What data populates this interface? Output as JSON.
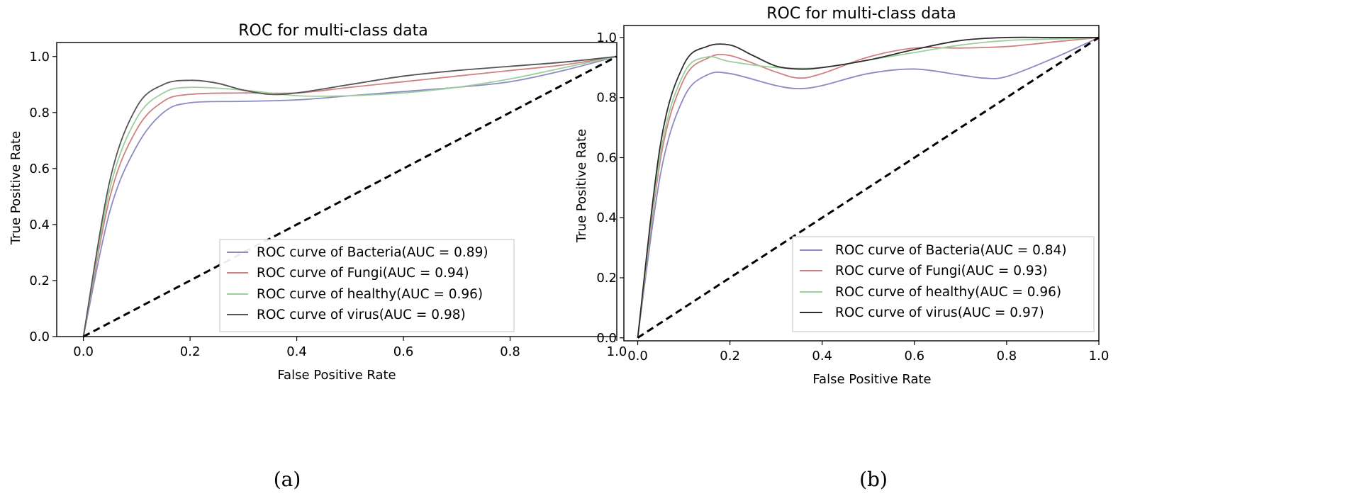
{
  "chart_data": [
    {
      "type": "line",
      "panel_label": "(a)",
      "title": "ROC for multi-class data",
      "xlabel": "False Positive Rate",
      "ylabel": "True Positive Rate",
      "xlim": [
        -0.05,
        1.0
      ],
      "ylim": [
        0.0,
        1.05
      ],
      "xticks": [
        "0.0",
        "0.2",
        "0.4",
        "0.6",
        "0.8",
        "1.0"
      ],
      "yticks": [
        "0.0",
        "0.2",
        "0.4",
        "0.6",
        "0.8",
        "1.0"
      ],
      "legend_position": "lower-right",
      "baseline": {
        "style": "dashed",
        "color": "#000000",
        "x": [
          0,
          1
        ],
        "y": [
          0,
          1
        ]
      },
      "series": [
        {
          "name": "ROC curve of Bacteria(AUC = 0.89)",
          "color": "#8b8bc4",
          "x": [
            0,
            0.05,
            0.1,
            0.15,
            0.2,
            0.3,
            0.4,
            0.5,
            0.6,
            0.7,
            0.8,
            0.9,
            1.0
          ],
          "y": [
            0,
            0.45,
            0.68,
            0.8,
            0.835,
            0.84,
            0.845,
            0.86,
            0.875,
            0.89,
            0.91,
            0.95,
            1.0
          ]
        },
        {
          "name": "ROC curve of Fungi(AUC = 0.94)",
          "color": "#d08080",
          "x": [
            0,
            0.05,
            0.1,
            0.15,
            0.2,
            0.3,
            0.4,
            0.5,
            0.6,
            0.7,
            0.8,
            0.9,
            1.0
          ],
          "y": [
            0,
            0.5,
            0.74,
            0.84,
            0.865,
            0.87,
            0.87,
            0.89,
            0.91,
            0.93,
            0.95,
            0.97,
            1.0
          ]
        },
        {
          "name": "ROC curve of healthy(AUC = 0.96)",
          "color": "#9ccf9c",
          "x": [
            0,
            0.05,
            0.1,
            0.15,
            0.2,
            0.3,
            0.4,
            0.5,
            0.6,
            0.7,
            0.8,
            0.9,
            1.0
          ],
          "y": [
            0,
            0.53,
            0.78,
            0.87,
            0.89,
            0.88,
            0.86,
            0.86,
            0.87,
            0.89,
            0.92,
            0.96,
            1.0
          ]
        },
        {
          "name": "ROC curve of virus(AUC = 0.98)",
          "color": "#555555",
          "x": [
            0,
            0.05,
            0.1,
            0.15,
            0.2,
            0.25,
            0.3,
            0.35,
            0.4,
            0.5,
            0.6,
            0.7,
            0.8,
            0.9,
            1.0
          ],
          "y": [
            0,
            0.56,
            0.82,
            0.9,
            0.915,
            0.905,
            0.88,
            0.865,
            0.87,
            0.9,
            0.93,
            0.95,
            0.965,
            0.98,
            1.0
          ]
        }
      ]
    },
    {
      "type": "line",
      "panel_label": "(b)",
      "title": "ROC for multi-class data",
      "xlabel": "False Positive Rate",
      "ylabel": "True Positive Rate",
      "xlim": [
        -0.03,
        1.0
      ],
      "ylim": [
        -0.01,
        1.04
      ],
      "xticks": [
        "0.0",
        "0.2",
        "0.4",
        "0.6",
        "0.8",
        "1.0"
      ],
      "yticks": [
        "0.0",
        "0.2",
        "0.4",
        "0.6",
        "0.8",
        "1.0"
      ],
      "legend_position": "lower-right",
      "baseline": {
        "style": "dashed",
        "color": "#000000",
        "x": [
          0,
          1
        ],
        "y": [
          0,
          1
        ]
      },
      "series": [
        {
          "name": "ROC curve of Bacteria(AUC = 0.84)",
          "color": "#8b8bc4",
          "x": [
            0,
            0.05,
            0.1,
            0.15,
            0.2,
            0.3,
            0.35,
            0.4,
            0.5,
            0.6,
            0.7,
            0.75,
            0.8,
            0.9,
            1.0
          ],
          "y": [
            0,
            0.55,
            0.8,
            0.875,
            0.88,
            0.84,
            0.83,
            0.84,
            0.88,
            0.895,
            0.875,
            0.865,
            0.87,
            0.93,
            1.0
          ]
        },
        {
          "name": "ROC curve of Fungi(AUC = 0.93)",
          "color": "#d08080",
          "x": [
            0,
            0.05,
            0.1,
            0.15,
            0.2,
            0.3,
            0.35,
            0.4,
            0.5,
            0.6,
            0.7,
            0.8,
            0.9,
            1.0
          ],
          "y": [
            0,
            0.6,
            0.86,
            0.93,
            0.94,
            0.885,
            0.865,
            0.88,
            0.935,
            0.965,
            0.965,
            0.97,
            0.985,
            1.0
          ]
        },
        {
          "name": "ROC curve of healthy(AUC = 0.96)",
          "color": "#9ccf9c",
          "x": [
            0,
            0.05,
            0.1,
            0.15,
            0.2,
            0.3,
            0.4,
            0.5,
            0.6,
            0.7,
            0.8,
            0.9,
            1.0
          ],
          "y": [
            0,
            0.62,
            0.88,
            0.935,
            0.92,
            0.9,
            0.9,
            0.925,
            0.95,
            0.975,
            0.99,
            0.995,
            1.0
          ]
        },
        {
          "name": "ROC curve of virus(AUC = 0.97)",
          "color": "#2d2d2d",
          "x": [
            0,
            0.05,
            0.1,
            0.15,
            0.2,
            0.25,
            0.3,
            0.35,
            0.4,
            0.5,
            0.6,
            0.7,
            0.8,
            0.9,
            1.0
          ],
          "y": [
            0,
            0.65,
            0.91,
            0.97,
            0.975,
            0.94,
            0.905,
            0.895,
            0.9,
            0.925,
            0.96,
            0.99,
            1.0,
            1.0,
            1.0
          ]
        }
      ]
    }
  ]
}
